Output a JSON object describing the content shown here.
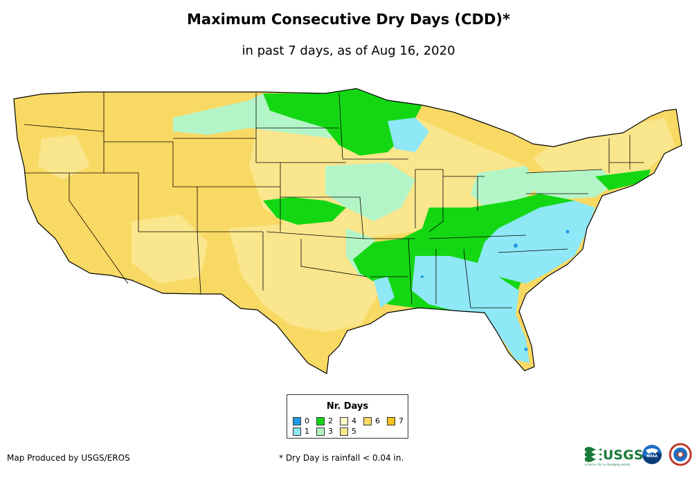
{
  "title": "Maximum Consecutive Dry Days (CDD)*",
  "subtitle": "in past 7 days, as of Aug 16, 2020",
  "legend": {
    "title": "Nr. Days",
    "items": [
      {
        "label": "0",
        "color": "#1e9be6"
      },
      {
        "label": "1",
        "color": "#8ee8f5"
      },
      {
        "label": "2",
        "color": "#14d714"
      },
      {
        "label": "3",
        "color": "#b4f5c8"
      },
      {
        "label": "4",
        "color": "#fafac8"
      },
      {
        "label": "5",
        "color": "#fae68c"
      },
      {
        "label": "6",
        "color": "#f8d964"
      },
      {
        "label": "7",
        "color": "#f5c31e"
      }
    ]
  },
  "footer": {
    "credit": "Map Produced by USGS/EROS",
    "note": "* Dry Day is rainfall < 0.04 in."
  },
  "logos": {
    "usgs": "USGS",
    "usgs_tagline": "science for a changing world",
    "noaa": "NOAA"
  }
}
